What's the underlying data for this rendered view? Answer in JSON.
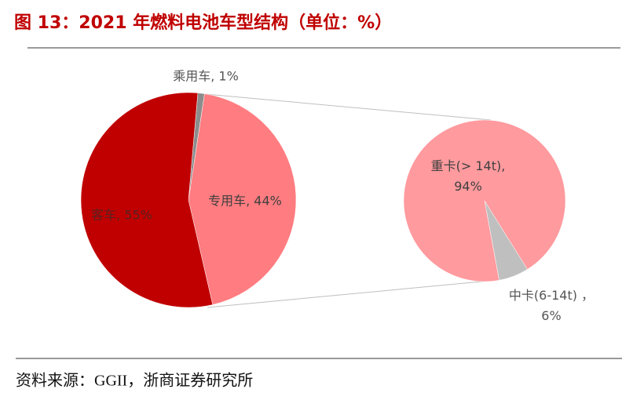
{
  "title": "图 13：2021 年燃料电池车型结构（单位：%）",
  "source": "资料来源：GGII，浙商证券研究所",
  "chart_data": [
    {
      "type": "pie",
      "values": [
        1,
        44,
        55
      ],
      "value_labels": [
        "乘用车, 1%",
        "专用车, 44%",
        "客车, 55%"
      ],
      "colors": [
        "#8c8c8c",
        "#ff7c80",
        "#c00000"
      ]
    },
    {
      "type": "pie",
      "values": [
        6,
        94
      ],
      "value_labels": [
        "中卡(6-14t) ，\n6%",
        "重卡(> 14t),\n94%"
      ],
      "colors": [
        "#bfbfbf",
        "#ff9a9e"
      ]
    }
  ]
}
